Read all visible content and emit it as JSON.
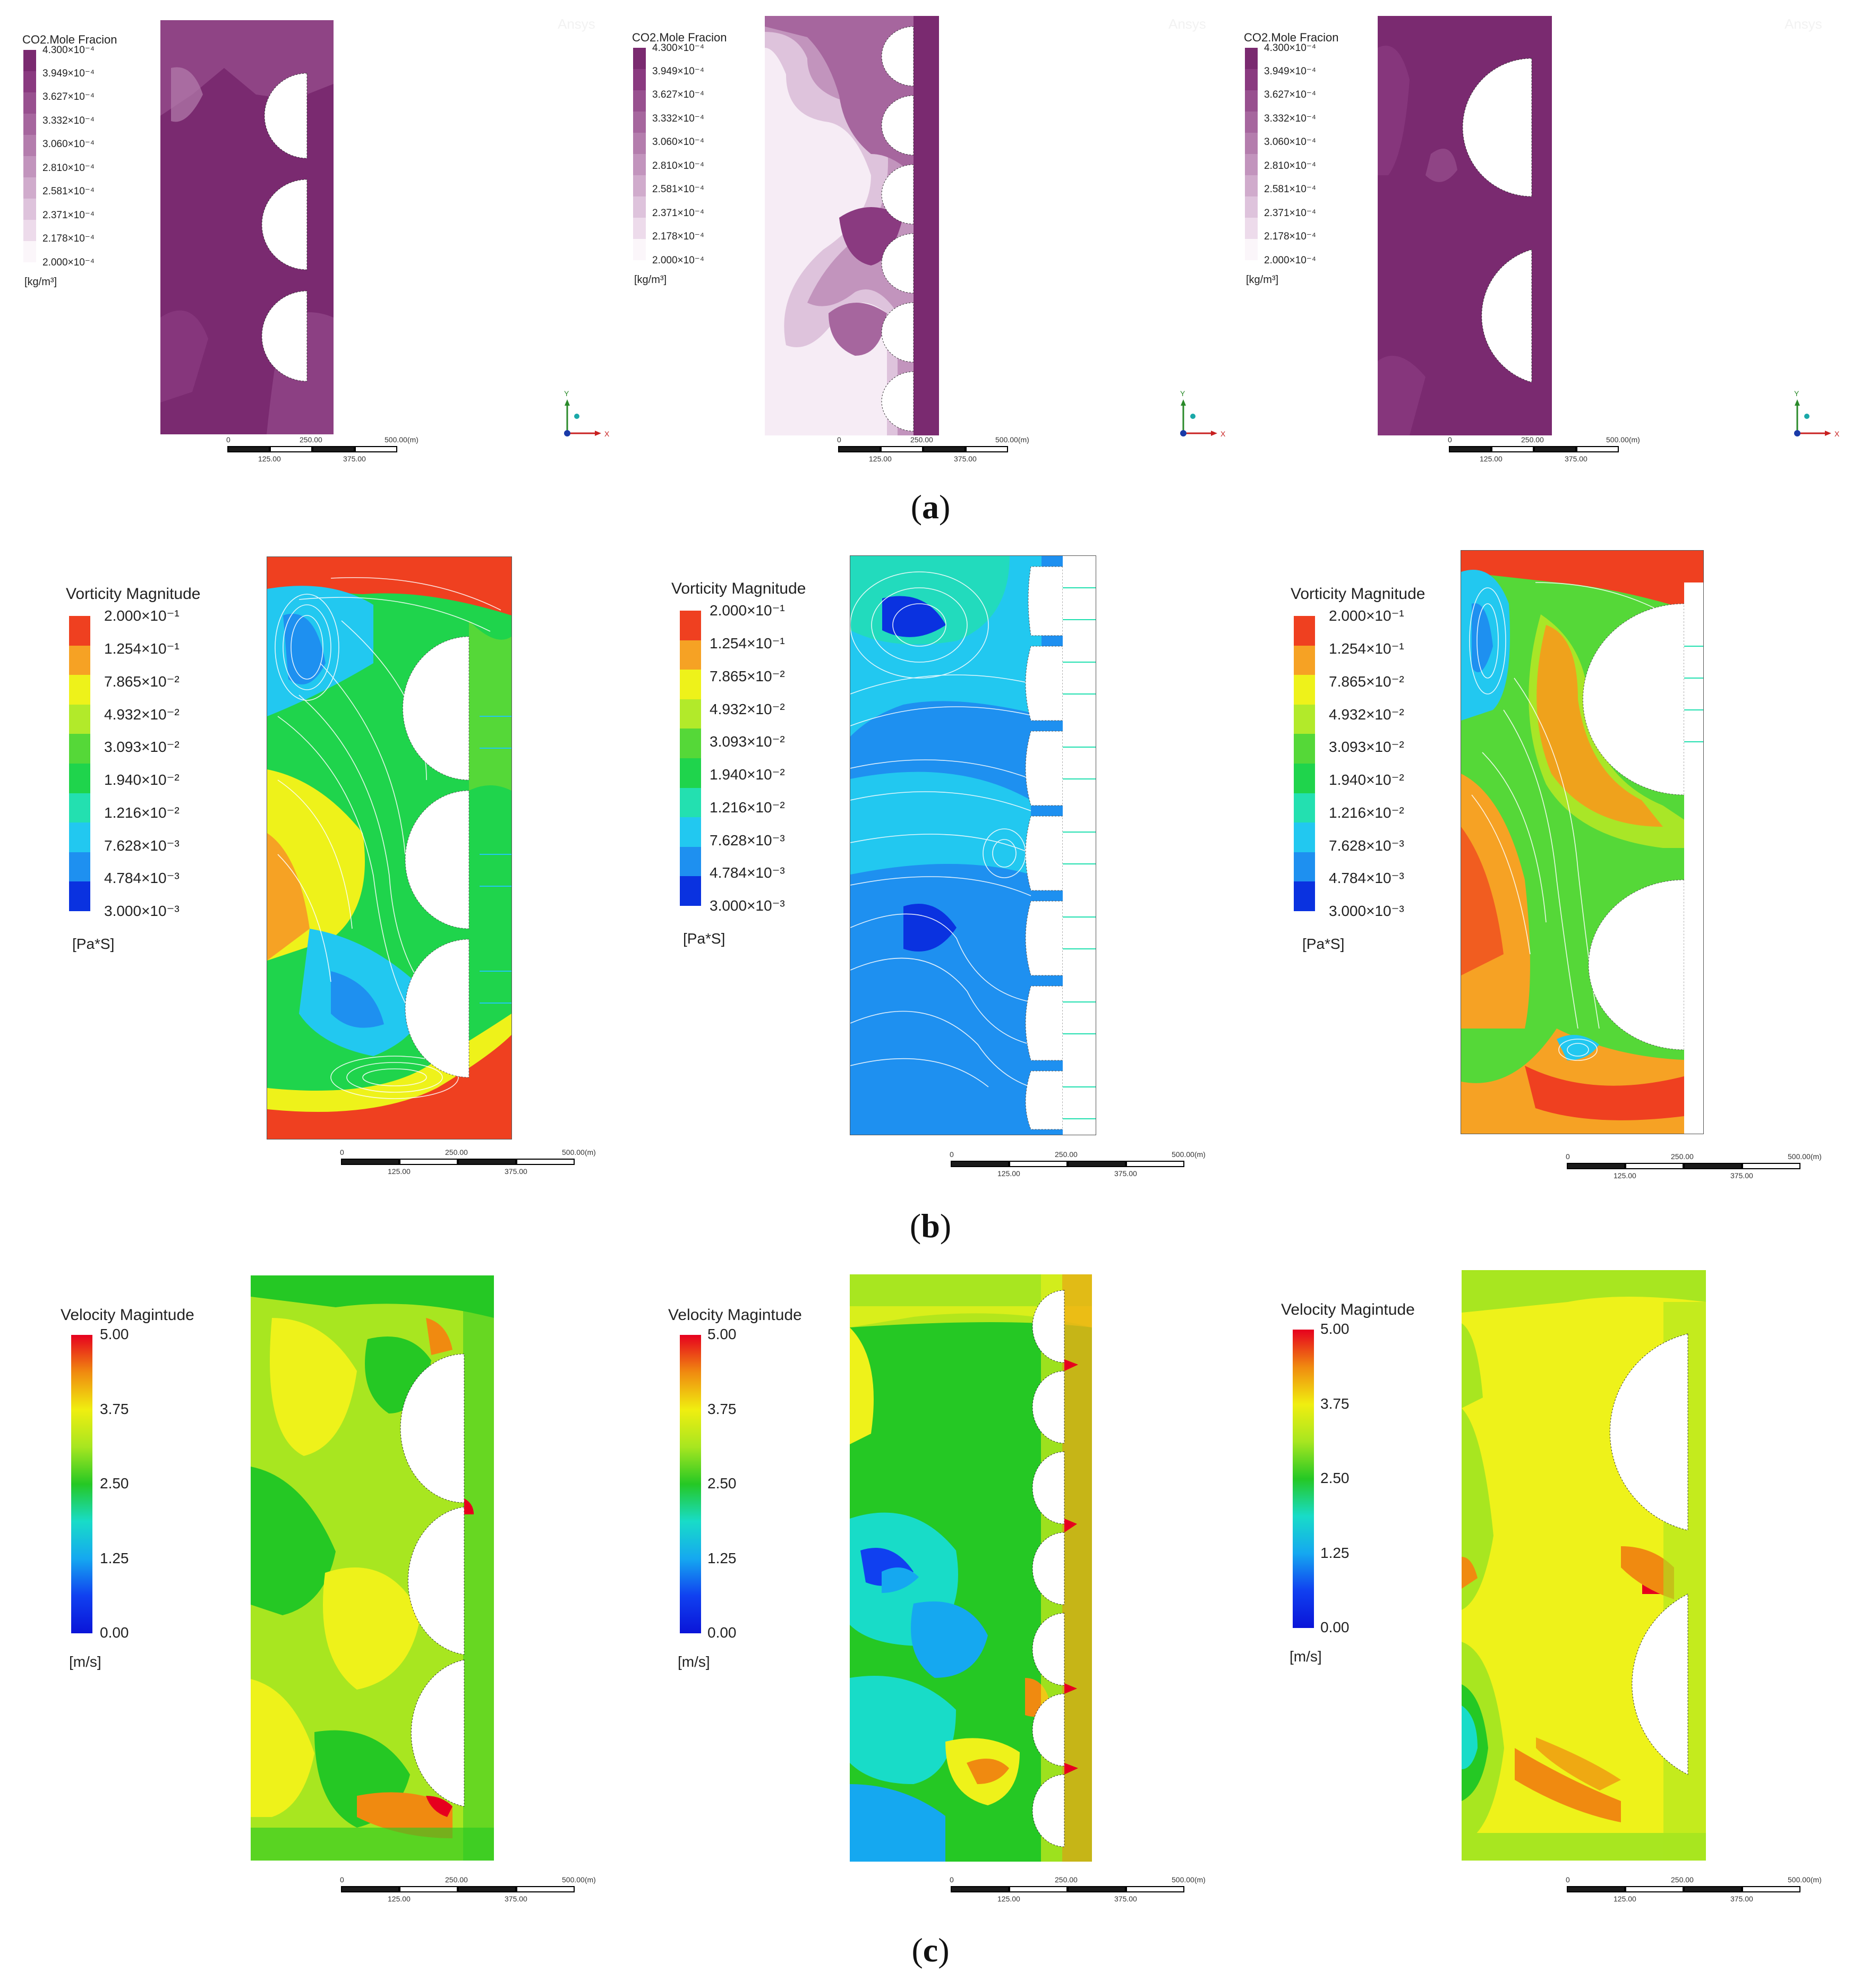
{
  "rows": [
    {
      "caption": {
        "open": "(",
        "letter": "a",
        "close": ")"
      },
      "legend_title": "CO2.Mole Fracion",
      "unit": "[kg/m³]",
      "ticks": [
        "4.300×10⁻⁴",
        "3.949×10⁻⁴",
        "3.627×10⁻⁴",
        "3.332×10⁻⁴",
        "3.060×10⁻⁴",
        "2.810×10⁻⁴",
        "2.581×10⁻⁴",
        "2.371×10⁻⁴",
        "2.178×10⁻⁴",
        "2.000×10⁻⁴"
      ],
      "scale": {
        "top": [
          "0",
          "250.00",
          "500.00(m)"
        ],
        "bottom": [
          "125.00",
          "375.00"
        ]
      },
      "watermark": "Ansys"
    },
    {
      "caption": {
        "open": "(",
        "letter": "b",
        "close": ")"
      },
      "legend_title": "Vorticity Magnitude",
      "unit": "[Pa*S]",
      "ticks": [
        "2.000×10⁻¹",
        "1.254×10⁻¹",
        "7.865×10⁻²",
        "4.932×10⁻²",
        "3.093×10⁻²",
        "1.940×10⁻²",
        "1.216×10⁻²",
        "7.628×10⁻³",
        "4.784×10⁻³",
        "3.000×10⁻³"
      ],
      "scale": {
        "top": [
          "0",
          "250.00",
          "500.00(m)"
        ],
        "bottom": [
          "125.00",
          "375.00"
        ]
      }
    },
    {
      "caption": {
        "open": "(",
        "letter": "c",
        "close": ")"
      },
      "legend_title": "Velocity Magintude",
      "unit": "[m/s]",
      "ticks": [
        "5.00",
        "3.75",
        "2.50",
        "1.25",
        "0.00"
      ],
      "scale": {
        "top": [
          "0",
          "250.00",
          "500.00(m)"
        ],
        "bottom": [
          "125.00",
          "375.00"
        ]
      }
    }
  ],
  "axis_labels": {
    "y": "Y",
    "x": "X"
  },
  "colors": {
    "co2": [
      "#7a2a70",
      "#8a3a80",
      "#98508f",
      "#a6669e",
      "#b47dad",
      "#c294bd",
      "#d0abcc",
      "#dec3dc",
      "#eddbeb",
      "#fbf6fa"
    ],
    "vorticity": [
      "#ef4020",
      "#f6a224",
      "#eef21a",
      "#b2ea2a",
      "#55d838",
      "#1fd44c",
      "#23e0b0",
      "#22c8f0",
      "#1e90f0",
      "#0a32e0"
    ],
    "velocity_gradient": [
      "#e6001e",
      "#f08a10",
      "#f0ee10",
      "#a8e620",
      "#25c824",
      "#18dcc8",
      "#15a8f0",
      "#1040f0",
      "#0a14d8"
    ],
    "domain_outline": "#555555"
  }
}
